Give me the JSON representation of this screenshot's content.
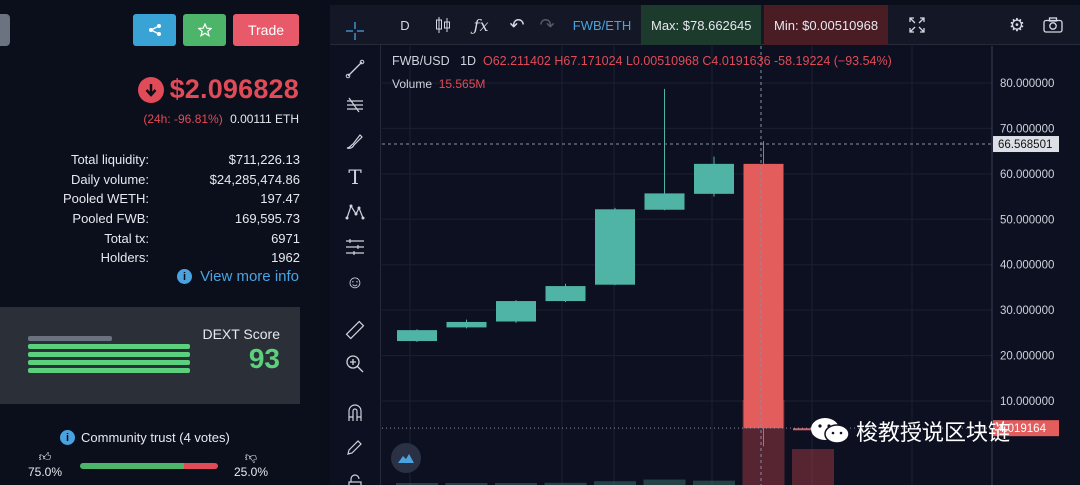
{
  "left": {
    "buttons": {
      "share_icon": "share-icon",
      "star_icon": "star-icon",
      "trade_label": "Trade"
    },
    "price": "$2.096828",
    "change_pct": "(24h: -96.81%)",
    "change_eth": "0.00111 ETH",
    "stats": [
      {
        "label": "Total liquidity:",
        "value": "$711,226.13"
      },
      {
        "label": "Daily volume:",
        "value": "$24,285,474.86"
      },
      {
        "label": "Pooled WETH:",
        "value": "197.47"
      },
      {
        "label": "Pooled FWB:",
        "value": "169,595.73"
      },
      {
        "label": "Total tx:",
        "value": "6971"
      },
      {
        "label": "Holders:",
        "value": "1962"
      }
    ],
    "more_info": "View more info",
    "dext_label": "DEXT Score",
    "dext_score": "93",
    "trust_label": "Community trust (4 votes)",
    "vote_up_pct": "75.0%",
    "vote_down_pct": "25.0%",
    "vote_up_fraction": 0.75
  },
  "toolbar": {
    "interval": "D",
    "pair": "FWB/ETH",
    "max": "Max: $78.662645",
    "min": "Min: $0.00510968"
  },
  "chart": {
    "symbol": "FWB/USD",
    "interval": "1D",
    "ohlc": "O62.211402 H67.171024 L0.00510968 C4.0191636 -58.19224 (−93.54%)",
    "volume_label": "Volume",
    "volume_value": "15.565M",
    "crosshair_price": "66.568501",
    "last_price_tag": "4.019164",
    "axis_ticks": [
      "80.000000",
      "70.000000",
      "60.000000",
      "50.000000",
      "40.000000",
      "30.000000",
      "20.000000",
      "10.000000"
    ]
  },
  "chart_data": {
    "type": "candlestick",
    "title": "FWB/USD",
    "y_axis_ticks": [
      80,
      70,
      60,
      50,
      40,
      30,
      20,
      10
    ],
    "ylim": [
      0,
      86
    ],
    "candles": [
      {
        "o": 23.2,
        "h": 25.8,
        "l": 23.0,
        "c": 25.6
      },
      {
        "o": 26.2,
        "h": 27.9,
        "l": 26.0,
        "c": 27.4
      },
      {
        "o": 27.5,
        "h": 32.2,
        "l": 27.2,
        "c": 32.0
      },
      {
        "o": 32.0,
        "h": 35.8,
        "l": 31.8,
        "c": 35.3
      },
      {
        "o": 35.6,
        "h": 52.5,
        "l": 35.5,
        "c": 52.2
      },
      {
        "o": 52.1,
        "h": 78.7,
        "l": 52.0,
        "c": 55.7
      },
      {
        "o": 55.6,
        "h": 63.8,
        "l": 55.0,
        "c": 62.2
      },
      {
        "o": 62.2,
        "h": 67.2,
        "l": 0.005,
        "c": 4.02
      },
      {
        "o": 4.0,
        "h": 4.5,
        "l": 2.6,
        "c": 3.6
      }
    ],
    "volume_bars": [
      0.2,
      0.2,
      0.3,
      0.4,
      0.7,
      1.0,
      0.8,
      15.6,
      6.6
    ],
    "crosshair_y": 66.568501
  }
}
